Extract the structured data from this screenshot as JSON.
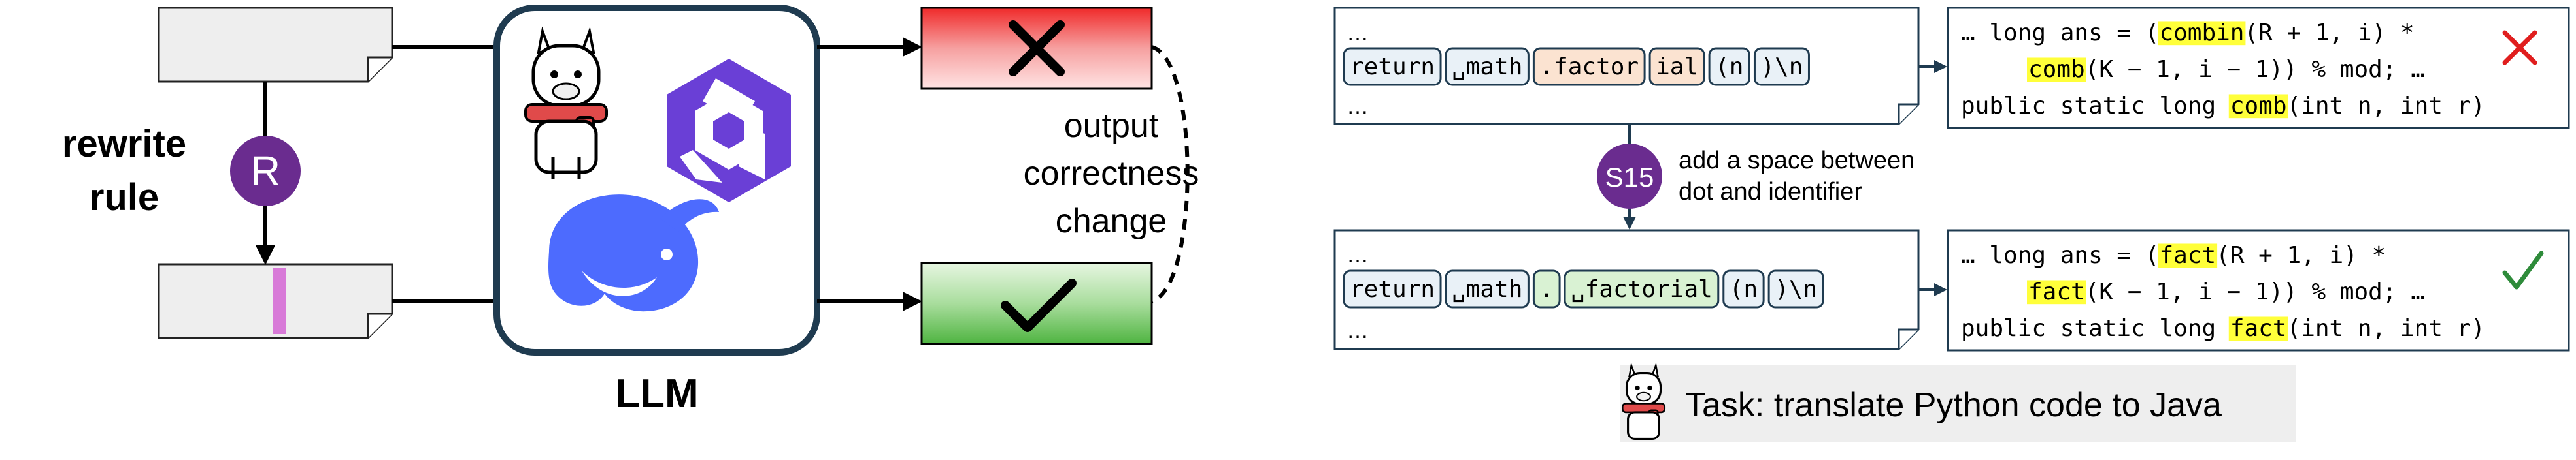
{
  "left_panel": {
    "rewrite_label_line1": "rewrite",
    "rewrite_label_line2": "rule",
    "rule_badge": "R",
    "model_label": "LLM",
    "output_change_line1": "output",
    "output_change_line2": "correctness",
    "output_change_line3": "change",
    "wrong_icon": "cross-icon",
    "right_icon": "check-icon",
    "model_icons": [
      "llama-icon",
      "qwen-icon",
      "deepseek-whale-icon"
    ],
    "colors": {
      "wrong_fill": "#ef3b3b",
      "right_fill": "#55b947",
      "badge": "#6a2c8f",
      "insert_mark": "#d87ad8",
      "doc_fill": "#eeeeee",
      "deepseek": "#4d6bfe",
      "qwen": "#6a3fd6"
    }
  },
  "right_panel": {
    "top_input": {
      "ellipsis_top": "…",
      "tokens": [
        "return",
        "␣math",
        ".factor",
        "ial",
        "(n",
        ")\\n"
      ],
      "ellipsis_bottom": "…"
    },
    "top_output": {
      "line1": [
        "… long ans = (",
        "combin",
        "(R + 1, i) *"
      ],
      "line2": [
        "comb",
        "(K − 1, i − 1)) % mod; …"
      ],
      "line3": [
        "public static long ",
        "comb",
        "(int n, int r)"
      ],
      "status_icon": "red-cross-icon"
    },
    "rule_badge": "S15",
    "rule_desc_line1": "add a space between",
    "rule_desc_line2": "dot and identifier",
    "bottom_input": {
      "ellipsis_top": "…",
      "tokens": [
        "return",
        "␣math",
        ".",
        "␣factorial",
        "(n",
        ")\\n"
      ],
      "ellipsis_bottom": "…"
    },
    "bottom_output": {
      "line1": [
        "… long ans = (",
        "fact",
        "(R + 1, i) *"
      ],
      "line2": [
        "fact",
        "(K − 1, i − 1)) % mod; …"
      ],
      "line3": [
        "public static long ",
        "fact",
        "(int n, int r)"
      ],
      "status_icon": "green-check-icon"
    },
    "task_icon": "llama-icon",
    "task_text": "Task: translate Python code to Java",
    "colors": {
      "token_fill": "#e9f1f7",
      "token_changed_top": "#fbe3d1",
      "token_changed_bottom": "#d9f2d3",
      "highlight": "#ffff3a",
      "panel_border": "#1f3b50",
      "task_bg": "#eeeeee"
    }
  }
}
